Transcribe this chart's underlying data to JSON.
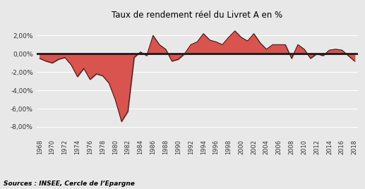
{
  "title": "Taux de rendement réel du Livret A en %",
  "source": "Sources : INSEE, Cercle de l’Epargne",
  "background_color": "#e8e8e8",
  "plot_bg_color": "#e8e8e8",
  "fill_color": "#d9534f",
  "line_color": "#1a1a1a",
  "zero_line_color": "#1a1a1a",
  "grid_color": "#ffffff",
  "ylim": [
    -0.09,
    0.034
  ],
  "yticks": [
    -0.08,
    -0.06,
    -0.04,
    -0.02,
    0.0,
    0.02
  ],
  "ytick_labels": [
    "-8,00%",
    "-6,00%",
    "-4,00%",
    "-2,00%",
    "0,00%",
    "2,00%"
  ],
  "years": [
    1968,
    1969,
    1970,
    1971,
    1972,
    1973,
    1974,
    1975,
    1976,
    1977,
    1978,
    1979,
    1980,
    1981,
    1982,
    1983,
    1984,
    1985,
    1986,
    1987,
    1988,
    1989,
    1990,
    1991,
    1992,
    1993,
    1994,
    1995,
    1996,
    1997,
    1998,
    1999,
    2000,
    2001,
    2002,
    2003,
    2004,
    2005,
    2006,
    2007,
    2008,
    2009,
    2010,
    2011,
    2012,
    2013,
    2014,
    2015,
    2016,
    2017,
    2018
  ],
  "values": [
    -0.005,
    -0.008,
    -0.01,
    -0.006,
    -0.004,
    -0.012,
    -0.025,
    -0.016,
    -0.028,
    -0.022,
    -0.024,
    -0.032,
    -0.05,
    -0.074,
    -0.063,
    -0.004,
    0.002,
    -0.002,
    0.02,
    0.01,
    0.005,
    -0.008,
    -0.006,
    0.0,
    0.01,
    0.013,
    0.022,
    0.015,
    0.013,
    0.01,
    0.018,
    0.025,
    0.018,
    0.014,
    0.022,
    0.012,
    0.005,
    0.01,
    0.01,
    0.01,
    -0.005,
    0.01,
    0.005,
    -0.005,
    0.0,
    -0.002,
    0.004,
    0.005,
    0.004,
    -0.002,
    -0.008
  ]
}
